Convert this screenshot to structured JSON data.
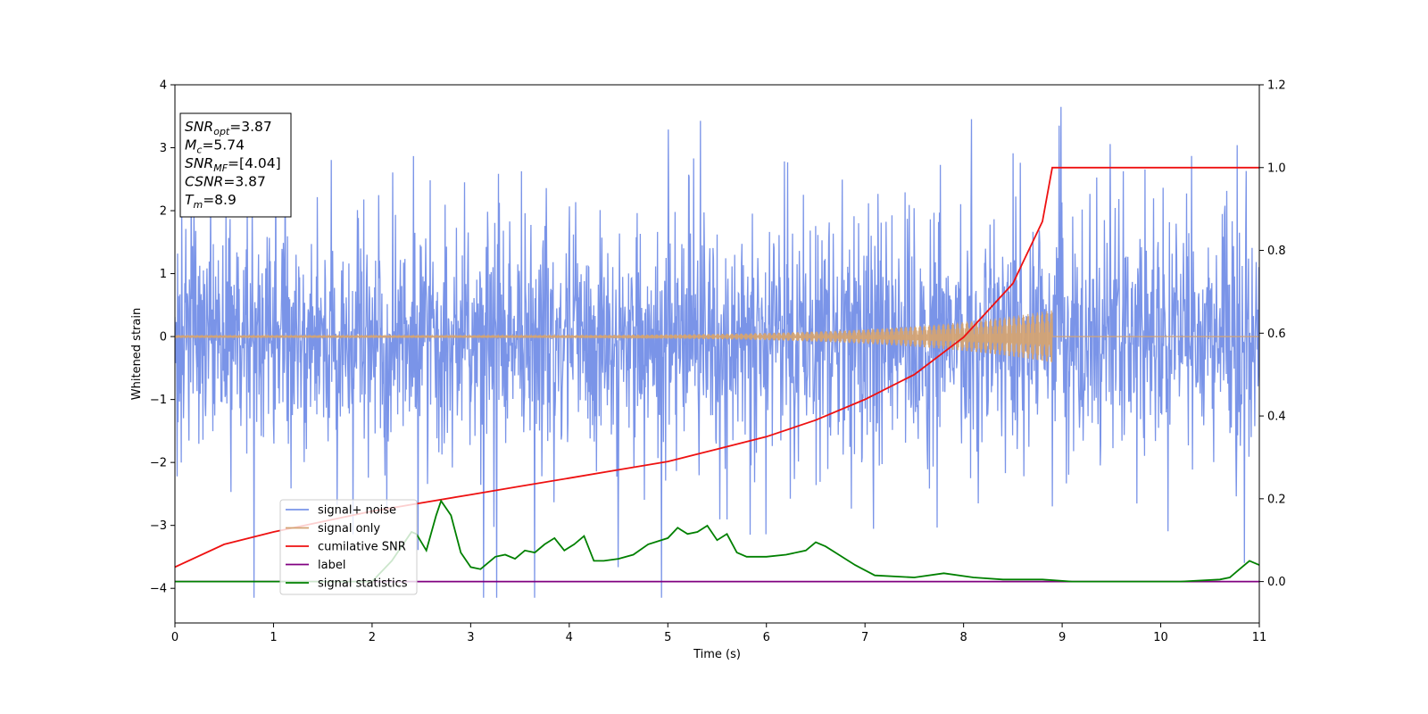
{
  "chart_data": {
    "type": "line",
    "xlabel": "Time (s)",
    "ylabel": "Whitened strain",
    "xlim": [
      0,
      11
    ],
    "ylim_left": [
      -4.55,
      4.0
    ],
    "ylim_right": [
      -0.1,
      1.2
    ],
    "x_ticks": [
      "0",
      "1",
      "2",
      "3",
      "4",
      "5",
      "6",
      "7",
      "8",
      "9",
      "10",
      "11"
    ],
    "y_left_ticks": [
      "4",
      "3",
      "2",
      "1",
      "0",
      "−1",
      "−2",
      "−3",
      "−4"
    ],
    "y_right_ticks": [
      "1.2",
      "1.0",
      "0.8",
      "0.6",
      "0.4",
      "0.2",
      "0.0"
    ],
    "legend_placement": "lower-left",
    "grid": false,
    "info_box": {
      "lines": [
        {
          "var": "SNR",
          "sub": "opt",
          "value": "=3.87"
        },
        {
          "var": "M",
          "sub": "c",
          "value": "=5.74"
        },
        {
          "var": "SNR",
          "sub": "MF",
          "value": "=[4.04]"
        },
        {
          "var": "CSNR",
          "sub": "",
          "value": "=3.87"
        },
        {
          "var": "T",
          "sub": "m",
          "value": "=8.9"
        }
      ]
    },
    "series": [
      {
        "name": "signal+ noise",
        "axis": "left",
        "color": "#7a94e8",
        "description_values": {
          "t_start": 0,
          "t_end": 11,
          "typical_amplitude": 1.4,
          "peak_max": 3.65,
          "peak_min": -4.15
        }
      },
      {
        "name": "signal only",
        "axis": "left",
        "color": "#d4a373",
        "chirp": {
          "t_start": 0,
          "t_merge": 8.9,
          "amp_start": 0.02,
          "amp_merge": 0.42
        }
      },
      {
        "name": "cumilative SNR",
        "axis": "right",
        "color": "#ee1111",
        "x": [
          0,
          0.5,
          1,
          1.5,
          2,
          2.5,
          3,
          3.5,
          4,
          4.5,
          5,
          5.5,
          6,
          6.5,
          7,
          7.5,
          8,
          8.5,
          8.8,
          8.9,
          11
        ],
        "values": [
          0.035,
          0.09,
          0.12,
          0.145,
          0.17,
          0.19,
          0.21,
          0.23,
          0.25,
          0.27,
          0.29,
          0.32,
          0.35,
          0.39,
          0.44,
          0.5,
          0.59,
          0.72,
          0.87,
          1.0,
          1.0
        ]
      },
      {
        "name": "label",
        "axis": "right",
        "color": "#800080",
        "x": [
          0,
          11
        ],
        "values": [
          0.0,
          0.0
        ]
      },
      {
        "name": "signal statistics",
        "axis": "right",
        "color": "#008000",
        "x": [
          0,
          1.0,
          2.0,
          2.2,
          2.4,
          2.45,
          2.55,
          2.65,
          2.7,
          2.8,
          2.9,
          3.0,
          3.1,
          3.25,
          3.35,
          3.45,
          3.55,
          3.65,
          3.75,
          3.85,
          3.95,
          4.05,
          4.15,
          4.25,
          4.35,
          4.5,
          4.65,
          4.8,
          5.0,
          5.1,
          5.2,
          5.3,
          5.4,
          5.5,
          5.6,
          5.7,
          5.8,
          6.0,
          6.2,
          6.4,
          6.5,
          6.6,
          6.7,
          6.9,
          7.1,
          7.5,
          7.8,
          8.1,
          8.4,
          8.8,
          9.1,
          9.6,
          10.2,
          10.6,
          10.7,
          10.8,
          10.9,
          11.0
        ],
        "values": [
          0.0,
          0.0,
          0.0,
          0.05,
          0.12,
          0.115,
          0.075,
          0.16,
          0.195,
          0.16,
          0.07,
          0.035,
          0.03,
          0.06,
          0.065,
          0.055,
          0.075,
          0.07,
          0.09,
          0.105,
          0.075,
          0.09,
          0.11,
          0.05,
          0.05,
          0.055,
          0.065,
          0.09,
          0.105,
          0.13,
          0.115,
          0.12,
          0.135,
          0.1,
          0.115,
          0.07,
          0.06,
          0.06,
          0.065,
          0.075,
          0.095,
          0.085,
          0.07,
          0.04,
          0.015,
          0.01,
          0.02,
          0.01,
          0.005,
          0.005,
          0.0,
          0.0,
          0.0,
          0.005,
          0.01,
          0.03,
          0.05,
          0.04
        ]
      }
    ]
  }
}
